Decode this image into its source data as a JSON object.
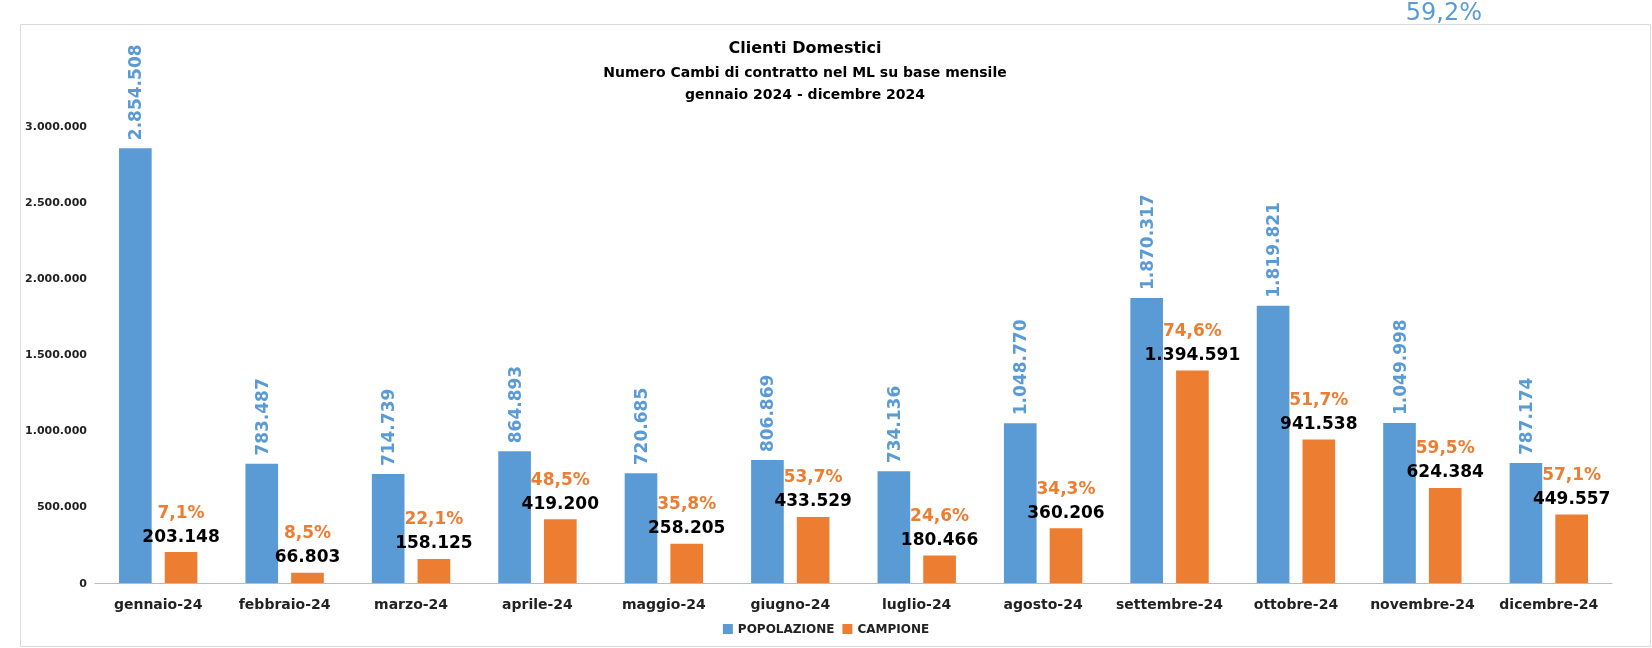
{
  "chart_data": {
    "type": "bar",
    "title": "Clienti Domestici",
    "subtitle": "Numero Cambi di contratto nel ML su base mensile\ngennaio 2024 - dicembre 2024",
    "categories": [
      "gennaio-24",
      "febbraio-24",
      "marzo-24",
      "aprile-24",
      "maggio-24",
      "giugno-24",
      "luglio-24",
      "agosto-24",
      "settembre-24",
      "ottobre-24",
      "novembre-24",
      "dicembre-24"
    ],
    "series": [
      {
        "name": "POPOLAZIONE",
        "color": "#5b9bd5",
        "values": [
          2854508,
          783487,
          714739,
          864893,
          720685,
          806869,
          734136,
          1048770,
          1870317,
          1819821,
          1049998,
          787174
        ],
        "value_labels": [
          "2.854.508",
          "783.487",
          "714.739",
          "864.893",
          "720.685",
          "806.869",
          "734.136",
          "1.048.770",
          "1.870.317",
          "1.819.821",
          "1.049.998",
          "787.174"
        ]
      },
      {
        "name": "CAMPIONE",
        "color": "#ed7d31",
        "values": [
          203148,
          66803,
          158125,
          419200,
          258205,
          433529,
          180466,
          360206,
          1394591,
          941538,
          624384,
          449557
        ],
        "value_labels": [
          "203.148",
          "66.803",
          "158.125",
          "419.200",
          "258.205",
          "433.529",
          "180.466",
          "360.206",
          "1.394.591",
          "941.538",
          "624.384",
          "449.557"
        ]
      }
    ],
    "ylim": [
      0,
      3000000
    ],
    "yticks": [
      {
        "value": 0,
        "label": "0"
      },
      {
        "value": 500000,
        "label": "500.000"
      },
      {
        "value": 1000000,
        "label": "1.000.000"
      },
      {
        "value": 1500000,
        "label": "1.500.000"
      },
      {
        "value": 2000000,
        "label": "2.000.000"
      },
      {
        "value": 2500000,
        "label": "2.500.000"
      },
      {
        "value": 3000000,
        "label": "3.000.000"
      }
    ],
    "annotations": [
      "59,2%",
      "7,1%",
      "8,5%",
      "22,1%",
      "48,5%",
      "35,8%",
      "53,7%",
      "24,6%",
      "34,3%",
      "74,6%",
      "51,7%",
      "59,5%",
      "57,1%"
    ],
    "grid": false,
    "legend": "bottom"
  }
}
